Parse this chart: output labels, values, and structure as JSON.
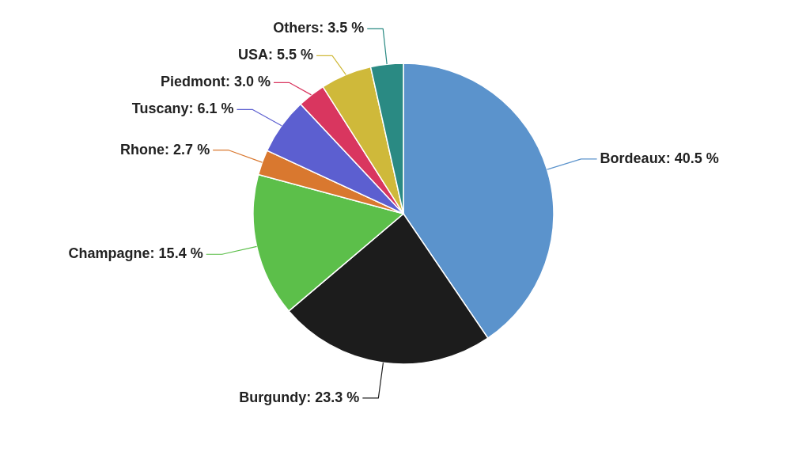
{
  "chart_data": {
    "type": "pie",
    "categories": [
      "Bordeaux",
      "Burgundy",
      "Champagne",
      "Rhone",
      "Tuscany",
      "Piedmont",
      "USA",
      "Others"
    ],
    "values": [
      40.5,
      23.3,
      15.4,
      2.7,
      6.1,
      3.0,
      5.5,
      3.5
    ],
    "value_labels": [
      "40.5 %",
      "23.3 %",
      "15.4 %",
      "2.7 %",
      "6.1 %",
      "3.0 %",
      "5.5 %",
      "3.5 %"
    ],
    "colors": [
      "#5b93cc",
      "#1c1c1c",
      "#5cbf4a",
      "#d9782f",
      "#5c5fd0",
      "#d9365f",
      "#cfb93a",
      "#2a8a83"
    ]
  }
}
